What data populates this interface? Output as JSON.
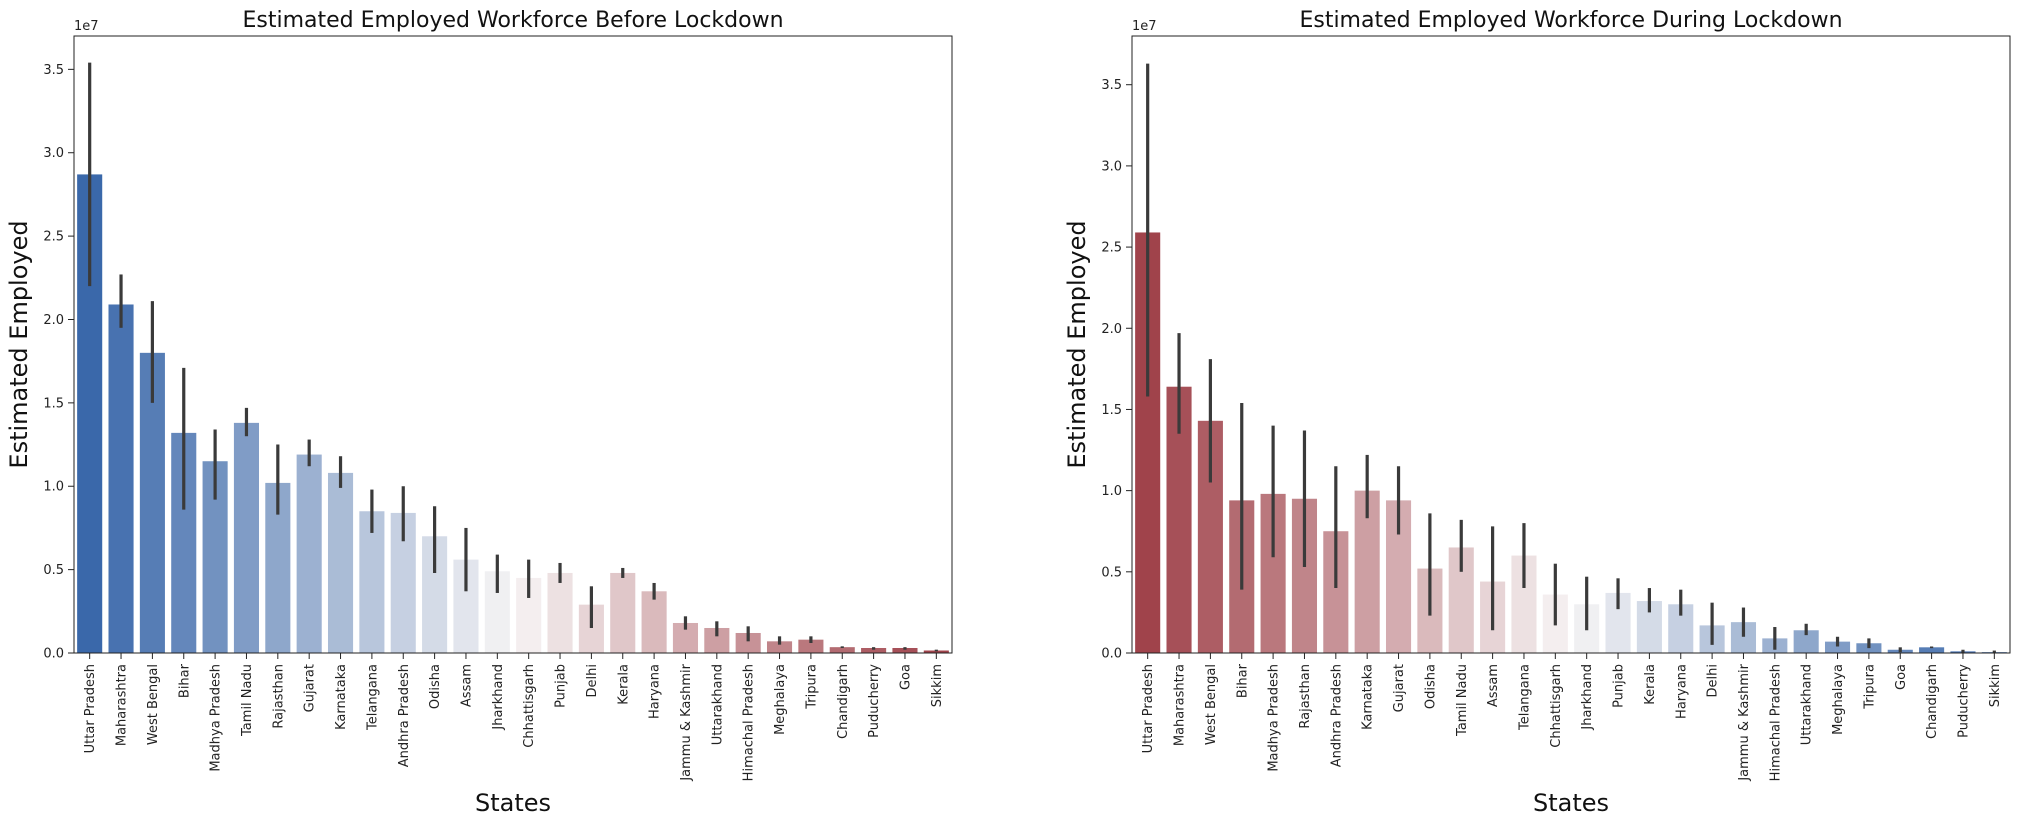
{
  "chart_data": [
    {
      "type": "bar",
      "title": "Estimated Employed Workforce Before Lockdown",
      "xlabel": "States",
      "ylabel": "Estimated Employed",
      "offset_text": "1e7",
      "ylim": [
        0,
        3.7
      ],
      "yticks": [
        0.0,
        0.5,
        1.0,
        1.5,
        2.0,
        2.5,
        3.0,
        3.5
      ],
      "ytick_labels": [
        "0.0",
        "0.5",
        "1.0",
        "1.5",
        "2.0",
        "2.5",
        "3.0",
        "3.5"
      ],
      "palette": "blue-to-red",
      "categories": [
        "Uttar Pradesh",
        "Maharashtra",
        "West Bengal",
        "Bihar",
        "Madhya Pradesh",
        "Tamil Nadu",
        "Rajasthan",
        "Gujarat",
        "Karnataka",
        "Telangana",
        "Andhra Pradesh",
        "Odisha",
        "Assam",
        "Jharkhand",
        "Chhattisgarh",
        "Punjab",
        "Delhi",
        "Kerala",
        "Haryana",
        "Jammu & Kashmir",
        "Uttarakhand",
        "Himachal Pradesh",
        "Meghalaya",
        "Tripura",
        "Chandigarh",
        "Puducherry",
        "Goa",
        "Sikkim"
      ],
      "values": [
        2.87,
        2.09,
        1.8,
        1.32,
        1.15,
        1.38,
        1.02,
        1.19,
        1.08,
        0.85,
        0.84,
        0.7,
        0.56,
        0.49,
        0.45,
        0.48,
        0.29,
        0.48,
        0.37,
        0.18,
        0.15,
        0.12,
        0.07,
        0.08,
        0.035,
        0.03,
        0.03,
        0.015
      ],
      "err_low": [
        2.2,
        1.95,
        1.5,
        0.86,
        0.92,
        1.3,
        0.83,
        1.12,
        0.99,
        0.72,
        0.67,
        0.48,
        0.37,
        0.36,
        0.33,
        0.42,
        0.15,
        0.45,
        0.32,
        0.14,
        0.1,
        0.07,
        0.05,
        0.06,
        0.03,
        0.02,
        0.02,
        0.01
      ],
      "err_high": [
        3.54,
        2.27,
        2.11,
        1.71,
        1.34,
        1.47,
        1.25,
        1.28,
        1.18,
        0.98,
        1.0,
        0.88,
        0.75,
        0.59,
        0.56,
        0.54,
        0.4,
        0.51,
        0.42,
        0.22,
        0.19,
        0.16,
        0.1,
        0.1,
        0.04,
        0.035,
        0.035,
        0.02
      ]
    },
    {
      "type": "bar",
      "title": "Estimated Employed Workforce During Lockdown",
      "xlabel": "States",
      "ylabel": "Estimated Employed",
      "offset_text": "1e7",
      "ylim": [
        0,
        3.8
      ],
      "yticks": [
        0.0,
        0.5,
        1.0,
        1.5,
        2.0,
        2.5,
        3.0,
        3.5
      ],
      "ytick_labels": [
        "0.0",
        "0.5",
        "1.0",
        "1.5",
        "2.0",
        "2.5",
        "3.0",
        "3.5"
      ],
      "palette": "red-to-blue",
      "categories": [
        "Uttar Pradesh",
        "Maharashtra",
        "West Bengal",
        "Bihar",
        "Madhya Pradesh",
        "Rajasthan",
        "Andhra Pradesh",
        "Karnataka",
        "Gujarat",
        "Odisha",
        "Tamil Nadu",
        "Assam",
        "Telangana",
        "Chhattisgarh",
        "Jharkhand",
        "Punjab",
        "Kerala",
        "Haryana",
        "Delhi",
        "Jammu & Kashmir",
        "Himachal Pradesh",
        "Uttarakhand",
        "Meghalaya",
        "Tripura",
        "Goa",
        "Chandigarh",
        "Puducherry",
        "Sikkim"
      ],
      "values": [
        2.59,
        1.64,
        1.43,
        0.94,
        0.98,
        0.95,
        0.75,
        1.0,
        0.94,
        0.52,
        0.65,
        0.44,
        0.6,
        0.36,
        0.3,
        0.37,
        0.32,
        0.3,
        0.17,
        0.19,
        0.09,
        0.14,
        0.07,
        0.06,
        0.02,
        0.035,
        0.01,
        0.005
      ],
      "err_low": [
        1.58,
        1.35,
        1.05,
        0.39,
        0.59,
        0.53,
        0.4,
        0.83,
        0.73,
        0.23,
        0.5,
        0.14,
        0.4,
        0.17,
        0.14,
        0.27,
        0.25,
        0.23,
        0.05,
        0.1,
        0.02,
        0.11,
        0.04,
        0.03,
        0.005,
        0.03,
        0.0,
        0.0
      ],
      "err_high": [
        3.63,
        1.97,
        1.81,
        1.54,
        1.4,
        1.37,
        1.15,
        1.22,
        1.15,
        0.86,
        0.82,
        0.78,
        0.8,
        0.55,
        0.47,
        0.46,
        0.4,
        0.39,
        0.31,
        0.28,
        0.16,
        0.18,
        0.1,
        0.09,
        0.035,
        0.04,
        0.02,
        0.015
      ]
    }
  ]
}
